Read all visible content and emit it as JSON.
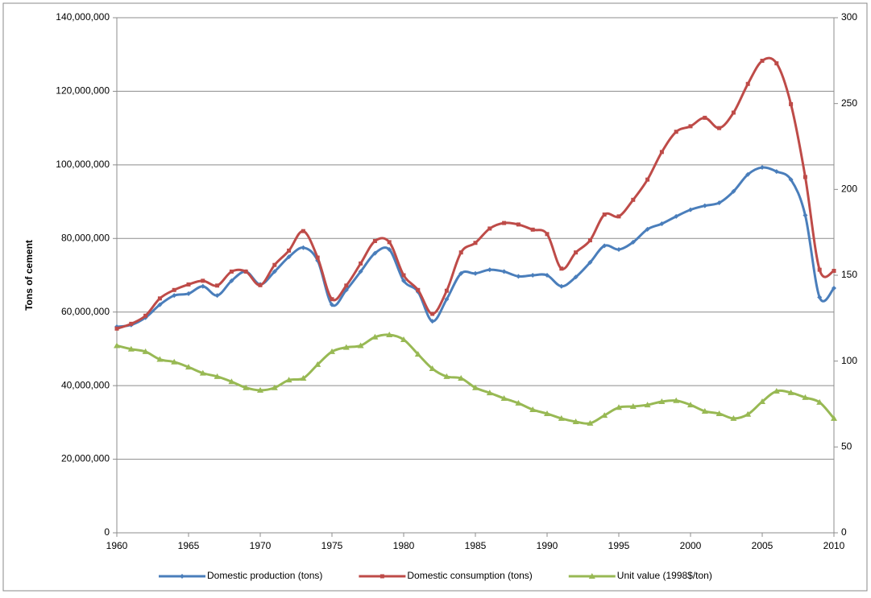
{
  "chart_data": {
    "type": "line",
    "y_label": "Tons of cement",
    "x": [
      1960,
      1961,
      1962,
      1963,
      1964,
      1965,
      1966,
      1967,
      1968,
      1969,
      1970,
      1971,
      1972,
      1973,
      1974,
      1975,
      1976,
      1977,
      1978,
      1979,
      1980,
      1981,
      1982,
      1983,
      1984,
      1985,
      1986,
      1987,
      1988,
      1989,
      1990,
      1991,
      1992,
      1993,
      1994,
      1995,
      1996,
      1997,
      1998,
      1999,
      2000,
      2001,
      2002,
      2003,
      2004,
      2005,
      2006,
      2007,
      2008,
      2009,
      2010
    ],
    "xlim": [
      1960,
      2010
    ],
    "xticks": [
      1960,
      1965,
      1970,
      1975,
      1980,
      1985,
      1990,
      1995,
      2000,
      2005,
      2010
    ],
    "ylim": [
      0,
      140000000
    ],
    "yticks": [
      0,
      {
        "value": 20000000,
        "label": "20,000,000"
      },
      {
        "value": 40000000,
        "label": "40,000,000"
      },
      {
        "value": 60000000,
        "label": "60,000,000"
      },
      {
        "value": 80000000,
        "label": "80,000,000"
      },
      {
        "value": 100000000,
        "label": "100,000,000"
      },
      {
        "value": 120000000,
        "label": "120,000,000"
      },
      {
        "value": 140000000,
        "label": "140,000,000"
      }
    ],
    "y2lim": [
      0,
      300
    ],
    "y2ticks": [
      0,
      50,
      100,
      150,
      200,
      250,
      300
    ],
    "grid": true,
    "legend": "bottom",
    "series": [
      {
        "name": "Domestic production (tons)",
        "color": "#4a7ebb",
        "marker": "diamond",
        "values": [
          56000000,
          56500000,
          58500000,
          62000000,
          64500000,
          65000000,
          67000000,
          64500000,
          68500000,
          71000000,
          67500000,
          71000000,
          75000000,
          77500000,
          74000000,
          62000000,
          66000000,
          71000000,
          76000000,
          77000000,
          68500000,
          65500000,
          57500000,
          63500000,
          70500000,
          70500000,
          71500000,
          71000000,
          69700000,
          70000000,
          70000000,
          67000000,
          69500000,
          73500000,
          78000000,
          77000000,
          79000000,
          82500000,
          84000000,
          86000000,
          87800000,
          88900000,
          89700000,
          92800000,
          97400000,
          99300000,
          98200000,
          96000000,
          86300000,
          64000000,
          66500000
        ]
      },
      {
        "name": "Domestic consumption (tons)",
        "color": "#be4b48",
        "marker": "square",
        "values": [
          55500000,
          56800000,
          59000000,
          63700000,
          66000000,
          67500000,
          68500000,
          67200000,
          71000000,
          71000000,
          67300000,
          72800000,
          76700000,
          82000000,
          74800000,
          63500000,
          67200000,
          73200000,
          79300000,
          79000000,
          70000000,
          66000000,
          59500000,
          65800000,
          76200000,
          78800000,
          82700000,
          84200000,
          83800000,
          82400000,
          81200000,
          71800000,
          76200000,
          79500000,
          86500000,
          86000000,
          90500000,
          96000000,
          103500000,
          109000000,
          110500000,
          112800000,
          110000000,
          114200000,
          122000000,
          128300000,
          127600000,
          116500000,
          96700000,
          71500000,
          71200000
        ]
      },
      {
        "name": "Unit value (1998$/ton)",
        "color": "#98b954",
        "marker": "triangle",
        "axis": "y2",
        "values": [
          109,
          107,
          105.5,
          101,
          99.5,
          96.5,
          93,
          91,
          88,
          84.5,
          83,
          84.5,
          89,
          90,
          98,
          105.5,
          108,
          109,
          114,
          115.3,
          112.5,
          104,
          95.6,
          91,
          90,
          84.5,
          81.5,
          78.3,
          75.5,
          71.7,
          69.4,
          66.6,
          64.7,
          63.8,
          68.4,
          73,
          73.6,
          74.5,
          76.4,
          77,
          74.5,
          70.8,
          69.4,
          66.6,
          69,
          76.4,
          82.5,
          81.6,
          78.8,
          76,
          66.6
        ]
      }
    ]
  }
}
